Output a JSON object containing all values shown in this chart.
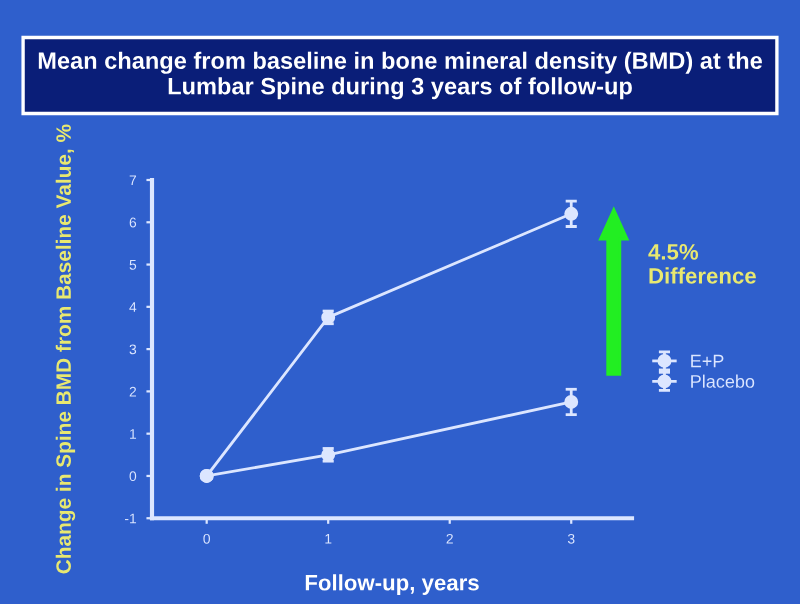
{
  "chart_data": {
    "type": "line",
    "title": "Mean change from baseline in bone mineral density (BMD) at the Lumbar Spine during 3 years of follow-up",
    "xlabel": "Follow-up, years",
    "ylabel": "Change in Spine BMD from Baseline Value, %",
    "x": [
      0,
      1,
      3
    ],
    "series": [
      {
        "name": "E+P",
        "color": "#dce6ff",
        "values": [
          0,
          3.75,
          6.2
        ],
        "errors": [
          null,
          0.15,
          0.3
        ]
      },
      {
        "name": "Placebo",
        "color": "#dce6ff",
        "values": [
          0,
          0.5,
          1.75
        ],
        "errors": [
          null,
          0.15,
          0.3
        ]
      }
    ],
    "xlim": [
      -0.45,
      3.5
    ],
    "xticks": [
      0,
      1,
      2,
      3
    ],
    "ylim": [
      -1,
      7
    ],
    "yticks": [
      -1,
      0,
      1,
      2,
      3,
      4,
      5,
      6,
      7
    ],
    "annotations": [
      "4.5% Difference"
    ],
    "marker": "circle",
    "line_style": "solid",
    "legend": "right",
    "grid": false
  }
}
